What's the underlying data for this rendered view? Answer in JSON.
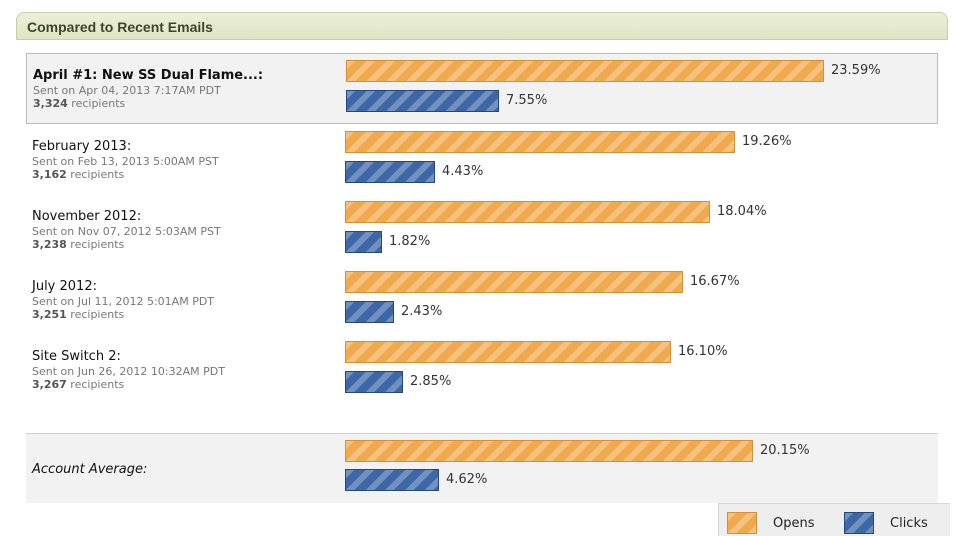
{
  "panel": {
    "title": "Compared to Recent Emails"
  },
  "colors": {
    "opens": "#f0a94c",
    "clicks": "#3d67a6"
  },
  "legend": {
    "opens_label": "Opens",
    "clicks_label": "Clicks"
  },
  "rows": [
    {
      "name": "April #1: New SS Dual Flame...:",
      "sent": "Sent on Apr 04, 2013 7:17AM PDT",
      "recipients_count": "3,324",
      "recipients_suffix": " recipients",
      "opens_label": "23.59%",
      "clicks_label": "7.55%"
    },
    {
      "name": "February 2013:",
      "sent": "Sent on Feb 13, 2013 5:00AM PST",
      "recipients_count": "3,162",
      "recipients_suffix": " recipients",
      "opens_label": "19.26%",
      "clicks_label": "4.43%"
    },
    {
      "name": "November 2012:",
      "sent": "Sent on Nov 07, 2012 5:03AM PST",
      "recipients_count": "3,238",
      "recipients_suffix": " recipients",
      "opens_label": "18.04%",
      "clicks_label": "1.82%"
    },
    {
      "name": "July 2012:",
      "sent": "Sent on Jul 11, 2012 5:01AM PDT",
      "recipients_count": "3,251",
      "recipients_suffix": " recipients",
      "opens_label": "16.67%",
      "clicks_label": "2.43%"
    },
    {
      "name": "Site Switch 2:",
      "sent": "Sent on Jun 26, 2012 10:32AM PDT",
      "recipients_count": "3,267",
      "recipients_suffix": " recipients",
      "opens_label": "16.10%",
      "clicks_label": "2.85%"
    }
  ],
  "average": {
    "name": "Account Average:",
    "opens_label": "20.15%",
    "clicks_label": "4.62%"
  },
  "chart_data": {
    "type": "bar",
    "orientation": "horizontal",
    "title": "Compared to Recent Emails",
    "categories": [
      "April #1: New SS Dual Flame...:",
      "February 2013:",
      "November 2012:",
      "July 2012:",
      "Site Switch 2:",
      "Account Average:"
    ],
    "series": [
      {
        "name": "Opens",
        "values": [
          23.59,
          19.26,
          18.04,
          16.67,
          16.1,
          20.15
        ]
      },
      {
        "name": "Clicks",
        "values": [
          7.55,
          4.43,
          1.82,
          2.43,
          2.85,
          4.62
        ]
      }
    ],
    "unit": "%",
    "legend_position": "bottom-right"
  }
}
